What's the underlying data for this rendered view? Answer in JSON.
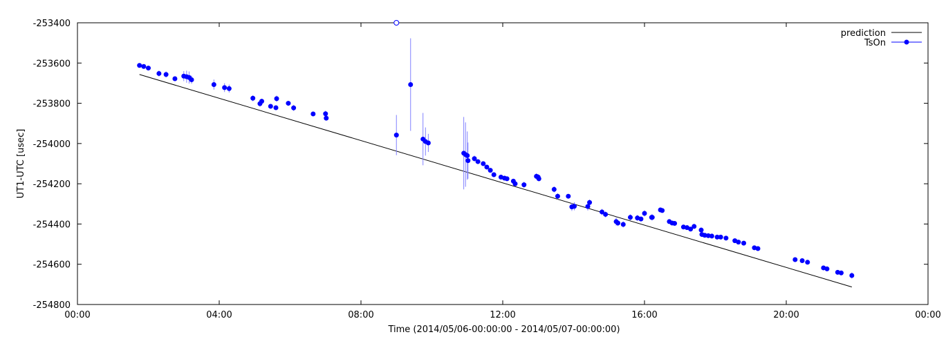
{
  "chart_data": {
    "type": "scatter",
    "xlabel": "Time (2014/05/06-00:00:00 - 2014/05/07-00:00:00)",
    "ylabel": "UT1-UTC [usec]",
    "xlim": [
      0,
      24
    ],
    "ylim": [
      -254800,
      -253400
    ],
    "x_ticks": [
      {
        "value": 0,
        "label": "00:00"
      },
      {
        "value": 4,
        "label": "04:00"
      },
      {
        "value": 8,
        "label": "08:00"
      },
      {
        "value": 12,
        "label": "12:00"
      },
      {
        "value": 16,
        "label": "16:00"
      },
      {
        "value": 20,
        "label": "20:00"
      },
      {
        "value": 24,
        "label": "00:00"
      }
    ],
    "y_ticks": [
      -253400,
      -253600,
      -253800,
      -254000,
      -254200,
      -254400,
      -254600,
      -254800
    ],
    "grid": false,
    "legend_position": "top-right",
    "colors": {
      "prediction": "#000000",
      "points": "#0000ff",
      "error_bars": "#8080ff"
    },
    "series": [
      {
        "name": "prediction",
        "kind": "line",
        "x": [
          1.75,
          21.85
        ],
        "y": [
          -253657,
          -254713
        ]
      },
      {
        "name": "TsOn",
        "kind": "points-with-error",
        "points": [
          [
            1.75,
            -253612,
            5
          ],
          [
            1.87,
            -253617,
            5
          ],
          [
            2.0,
            -253625,
            10
          ],
          [
            2.3,
            -253652,
            15
          ],
          [
            2.5,
            -253657,
            15
          ],
          [
            2.75,
            -253678,
            12
          ],
          [
            3.0,
            -253665,
            25
          ],
          [
            3.08,
            -253668,
            30
          ],
          [
            3.15,
            -253672,
            30
          ],
          [
            3.22,
            -253683,
            20
          ],
          [
            3.85,
            -253707,
            25
          ],
          [
            4.15,
            -253722,
            22
          ],
          [
            4.28,
            -253727,
            20
          ],
          [
            4.95,
            -253775,
            15
          ],
          [
            5.15,
            -253802,
            15
          ],
          [
            5.2,
            -253790,
            12
          ],
          [
            5.45,
            -253815,
            10
          ],
          [
            5.6,
            -253822,
            12
          ],
          [
            5.62,
            -253777,
            15
          ],
          [
            5.95,
            -253800,
            12
          ],
          [
            6.1,
            -253823,
            15
          ],
          [
            6.65,
            -253853,
            10
          ],
          [
            7.0,
            -253852,
            15
          ],
          [
            7.02,
            -253874,
            12
          ],
          [
            9.0,
            -253958,
            100
          ],
          [
            9.0,
            -253400,
            0
          ],
          [
            9.4,
            -253707,
            230
          ],
          [
            9.75,
            -253978,
            130
          ],
          [
            9.82,
            -253990,
            70
          ],
          [
            9.9,
            -253997,
            45
          ],
          [
            10.9,
            -254048,
            180
          ],
          [
            10.95,
            -254055,
            160
          ],
          [
            11.0,
            -254060,
            120
          ],
          [
            11.02,
            -254085,
            90
          ],
          [
            11.2,
            -254075,
            15
          ],
          [
            11.3,
            -254090,
            10
          ],
          [
            11.45,
            -254100,
            10
          ],
          [
            11.55,
            -254117,
            10
          ],
          [
            11.65,
            -254133,
            10
          ],
          [
            11.75,
            -254155,
            12
          ],
          [
            11.95,
            -254167,
            10
          ],
          [
            12.05,
            -254172,
            10
          ],
          [
            12.12,
            -254175,
            10
          ],
          [
            12.3,
            -254187,
            12
          ],
          [
            12.35,
            -254200,
            10
          ],
          [
            12.6,
            -254205,
            15
          ],
          [
            12.95,
            -254163,
            15
          ],
          [
            13.0,
            -254167,
            15
          ],
          [
            13.02,
            -254175,
            12
          ],
          [
            13.45,
            -254228,
            15
          ],
          [
            13.55,
            -254262,
            15
          ],
          [
            13.85,
            -254262,
            10
          ],
          [
            13.95,
            -254315,
            20
          ],
          [
            14.02,
            -254312,
            20
          ],
          [
            14.4,
            -254313,
            20
          ],
          [
            14.45,
            -254293,
            15
          ],
          [
            14.8,
            -254340,
            15
          ],
          [
            14.9,
            -254352,
            15
          ],
          [
            15.2,
            -254388,
            20
          ],
          [
            15.25,
            -254395,
            15
          ],
          [
            15.4,
            -254402,
            15
          ],
          [
            15.6,
            -254367,
            15
          ],
          [
            15.8,
            -254370,
            15
          ],
          [
            15.9,
            -254375,
            12
          ],
          [
            16.0,
            -254347,
            15
          ],
          [
            16.2,
            -254367,
            15
          ],
          [
            16.22,
            -254367,
            15
          ],
          [
            16.45,
            -254330,
            8
          ],
          [
            16.5,
            -254333,
            8
          ],
          [
            16.7,
            -254388,
            10
          ],
          [
            16.78,
            -254395,
            8
          ],
          [
            16.85,
            -254397,
            8
          ],
          [
            17.1,
            -254415,
            10
          ],
          [
            17.2,
            -254418,
            10
          ],
          [
            17.3,
            -254425,
            10
          ],
          [
            17.4,
            -254412,
            12
          ],
          [
            17.6,
            -254430,
            12
          ],
          [
            17.62,
            -254452,
            10
          ],
          [
            17.7,
            -254456,
            8
          ],
          [
            17.8,
            -254458,
            8
          ],
          [
            17.9,
            -254460,
            8
          ],
          [
            18.05,
            -254465,
            8
          ],
          [
            18.15,
            -254465,
            8
          ],
          [
            18.3,
            -254470,
            8
          ],
          [
            18.55,
            -254483,
            8
          ],
          [
            18.65,
            -254490,
            8
          ],
          [
            18.8,
            -254495,
            8
          ],
          [
            19.1,
            -254518,
            8
          ],
          [
            19.2,
            -254522,
            8
          ],
          [
            20.25,
            -254577,
            8
          ],
          [
            20.45,
            -254582,
            8
          ],
          [
            20.6,
            -254590,
            8
          ],
          [
            21.05,
            -254618,
            8
          ],
          [
            21.15,
            -254623,
            8
          ],
          [
            21.45,
            -254640,
            8
          ],
          [
            21.55,
            -254643,
            8
          ],
          [
            21.85,
            -254656,
            15
          ]
        ]
      }
    ]
  }
}
